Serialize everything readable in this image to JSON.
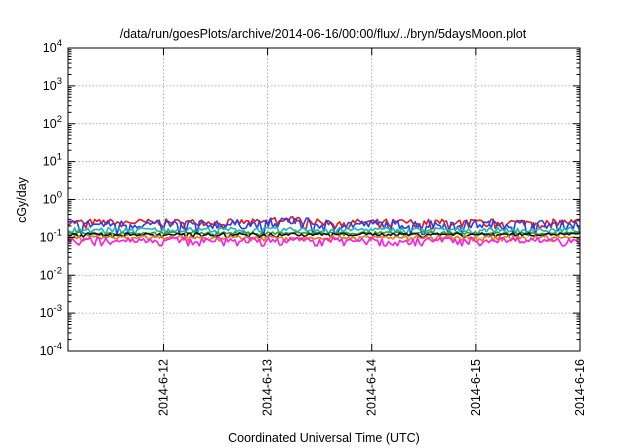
{
  "chart_data": {
    "type": "line",
    "title": "/data/run/goesPlots/archive/2014-06-16/00:00/flux/../bryn/5daysMoon.plot",
    "xlabel": "Coordinated Universal Time (UTC)",
    "ylabel": "cGy/day",
    "x_axis": {
      "type": "date",
      "range": [
        "2014-06-11T02:00",
        "2014-06-16T00:00"
      ],
      "tick_labels": [
        "2014-6-12",
        "2014-6-13",
        "2014-6-14",
        "2014-6-15",
        "2014-6-16"
      ]
    },
    "y_axis": {
      "scale": "log",
      "range": [
        0.0001,
        10000
      ],
      "tick_labels": [
        {
          "base": "10",
          "exp": "-4"
        },
        {
          "base": "10",
          "exp": "-3"
        },
        {
          "base": "10",
          "exp": "-2"
        },
        {
          "base": "10",
          "exp": "-1"
        },
        {
          "base": "10",
          "exp": "0"
        },
        {
          "base": "10",
          "exp": "1"
        },
        {
          "base": "10",
          "exp": "2"
        },
        {
          "base": "10",
          "exp": "3"
        },
        {
          "base": "10",
          "exp": "4"
        }
      ]
    },
    "grid": true,
    "series": [
      {
        "color": "#e8141b",
        "approx_level": 0.25,
        "range": [
          0.17,
          0.35
        ]
      },
      {
        "color": "#2a3ee6",
        "approx_level": 0.22,
        "range": [
          0.12,
          0.32
        ]
      },
      {
        "color": "#1fb6b6",
        "approx_level": 0.16,
        "range": [
          0.12,
          0.2
        ]
      },
      {
        "color": "#30a030",
        "approx_level": 0.13,
        "range": [
          0.11,
          0.15
        ]
      },
      {
        "color": "#111111",
        "approx_level": 0.12,
        "range": [
          0.1,
          0.14
        ]
      },
      {
        "color": "#e87a1a",
        "approx_level": 0.1,
        "range": [
          0.08,
          0.12
        ]
      },
      {
        "color": "#ff1ae6",
        "approx_level": 0.085,
        "range": [
          0.06,
          0.11
        ]
      }
    ]
  }
}
